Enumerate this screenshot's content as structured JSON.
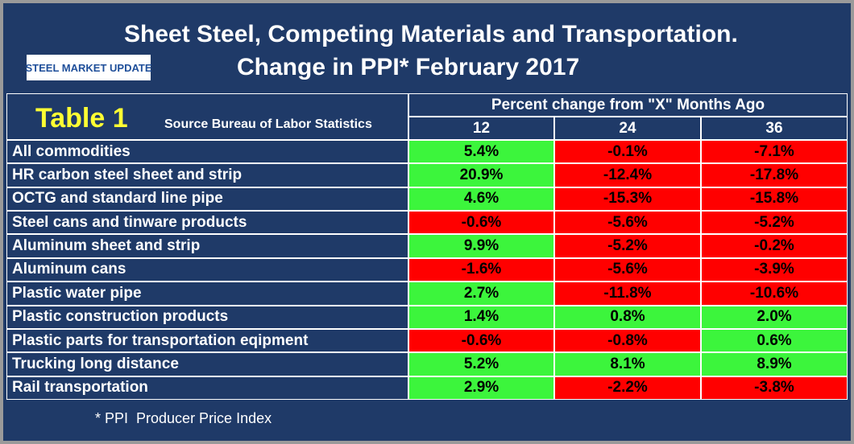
{
  "header": {
    "title_line1": "Sheet Steel, Competing Materials and Transportation.",
    "title_line2": "Change in PPI* February 2017",
    "logo": "STEEL MARKET UPDATE"
  },
  "table": {
    "label": "Table 1",
    "source": "Source Bureau of Labor Statistics",
    "group_header": "Percent change from \"X\" Months Ago",
    "columns": [
      "12",
      "24",
      "36"
    ],
    "rows": [
      {
        "name": "All commodities",
        "values": [
          "5.4%",
          "-0.1%",
          "-7.1%"
        ]
      },
      {
        "name": "HR carbon steel sheet and strip",
        "values": [
          "20.9%",
          "-12.4%",
          "-17.8%"
        ]
      },
      {
        "name": "OCTG and standard line pipe",
        "values": [
          "4.6%",
          "-15.3%",
          "-15.8%"
        ]
      },
      {
        "name": "Steel cans and tinware products",
        "values": [
          "-0.6%",
          "-5.6%",
          "-5.2%"
        ]
      },
      {
        "name": "Aluminum sheet and strip",
        "values": [
          "9.9%",
          "-5.2%",
          "-0.2%"
        ]
      },
      {
        "name": "Aluminum cans",
        "values": [
          "-1.6%",
          "-5.6%",
          "-3.9%"
        ]
      },
      {
        "name": "Plastic water pipe",
        "values": [
          "2.7%",
          "-11.8%",
          "-10.6%"
        ]
      },
      {
        "name": "Plastic construction products",
        "values": [
          "1.4%",
          "0.8%",
          "2.0%"
        ]
      },
      {
        "name": "Plastic parts for transportation eqipment",
        "values": [
          "-0.6%",
          "-0.8%",
          "0.6%"
        ]
      },
      {
        "name": "Trucking long distance",
        "values": [
          "5.2%",
          "8.1%",
          "8.9%"
        ]
      },
      {
        "name": "Rail transportation",
        "values": [
          "2.9%",
          "-2.2%",
          "-3.8%"
        ]
      }
    ]
  },
  "footnote": "* PPI  Producer Price Index",
  "colors": {
    "positive": "#3cf53c",
    "negative": "#ff0000"
  }
}
